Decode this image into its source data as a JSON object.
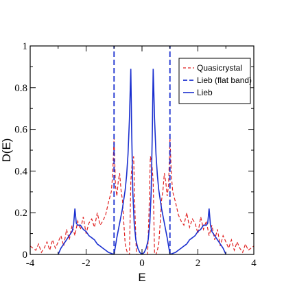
{
  "chart_data": {
    "type": "line",
    "xlabel": "E",
    "ylabel": "D(E)",
    "xlim": [
      -4,
      4
    ],
    "ylim": [
      0,
      1
    ],
    "x_ticks": [
      "-4",
      "-2",
      "0",
      "2",
      "4"
    ],
    "y_ticks": [
      "0",
      "0.2",
      "0.4",
      "0.6",
      "0.8",
      "1"
    ],
    "grid": false,
    "legend_position": "top-right",
    "colors": {
      "quasicrystal": "#e02020",
      "lieb": "#1a2fcf"
    },
    "series": [
      {
        "name": "Quasicrystal",
        "style": "dashed",
        "color": "#e02020",
        "x": [
          -4.0,
          -3.9,
          -3.8,
          -3.7,
          -3.6,
          -3.5,
          -3.4,
          -3.3,
          -3.2,
          -3.1,
          -3.0,
          -2.9,
          -2.8,
          -2.7,
          -2.6,
          -2.5,
          -2.4,
          -2.3,
          -2.2,
          -2.1,
          -2.0,
          -1.9,
          -1.8,
          -1.7,
          -1.6,
          -1.5,
          -1.4,
          -1.3,
          -1.2,
          -1.1,
          -1.05,
          -1.0,
          -0.95,
          -0.9,
          -0.85,
          -0.8,
          -0.75,
          -0.7,
          -0.65,
          -0.6,
          -0.55,
          -0.5,
          -0.45,
          -0.4,
          -0.35,
          -0.3,
          -0.25,
          -0.2,
          -0.15,
          -0.1,
          0.1,
          0.15,
          0.2,
          0.25,
          0.3,
          0.35,
          0.4,
          0.45,
          0.5,
          0.55,
          0.6,
          0.65,
          0.7,
          0.75,
          0.8,
          0.85,
          0.9,
          0.95,
          1.0,
          1.05,
          1.1,
          1.2,
          1.3,
          1.4,
          1.5,
          1.6,
          1.7,
          1.8,
          1.9,
          2.0,
          2.1,
          2.2,
          2.3,
          2.4,
          2.5,
          2.6,
          2.7,
          2.8,
          2.9,
          3.0,
          3.1,
          3.2,
          3.3,
          3.4,
          3.5,
          3.6,
          3.7,
          3.8,
          3.9,
          4.0
        ],
        "y": [
          0.04,
          0.03,
          0.02,
          0.05,
          0.01,
          0.03,
          0.06,
          0.02,
          0.07,
          0.03,
          0.06,
          0.09,
          0.04,
          0.12,
          0.07,
          0.14,
          0.09,
          0.16,
          0.12,
          0.18,
          0.1,
          0.15,
          0.17,
          0.13,
          0.2,
          0.14,
          0.16,
          0.19,
          0.25,
          0.3,
          0.38,
          0.56,
          0.33,
          0.28,
          0.35,
          0.39,
          0.31,
          0.26,
          0.15,
          0.05,
          0.02,
          0.0,
          0.0,
          0.35,
          0.44,
          0.47,
          0.2,
          0.0,
          0.0,
          0.0,
          0.0,
          0.0,
          0.0,
          0.2,
          0.47,
          0.44,
          0.35,
          0.0,
          0.0,
          0.02,
          0.05,
          0.15,
          0.26,
          0.31,
          0.39,
          0.35,
          0.28,
          0.33,
          0.56,
          0.38,
          0.3,
          0.25,
          0.19,
          0.16,
          0.14,
          0.2,
          0.13,
          0.17,
          0.15,
          0.1,
          0.18,
          0.12,
          0.16,
          0.09,
          0.14,
          0.07,
          0.12,
          0.04,
          0.09,
          0.06,
          0.03,
          0.07,
          0.02,
          0.06,
          0.03,
          0.01,
          0.05,
          0.02,
          0.03,
          0.04
        ]
      },
      {
        "name": "Lieb (flat band)",
        "style": "dashed",
        "color": "#1a2fcf",
        "x": [
          -1,
          1
        ],
        "y": [
          1,
          1
        ]
      },
      {
        "name": "Lieb",
        "style": "solid",
        "color": "#1a2fcf",
        "x": [
          -3.0,
          -2.9,
          -2.8,
          -2.7,
          -2.6,
          -2.5,
          -2.45,
          -2.4,
          -2.35,
          -2.3,
          -2.2,
          -2.1,
          -2.0,
          -1.9,
          -1.8,
          -1.7,
          -1.6,
          -1.5,
          -1.4,
          -1.3,
          -1.2,
          -1.1,
          -1.0,
          -0.9,
          -0.8,
          -0.7,
          -0.6,
          -0.55,
          -0.5,
          -0.45,
          -0.42,
          -0.4,
          -0.37,
          -0.33,
          -0.28,
          -0.22,
          -0.15,
          -0.08,
          0.0,
          0.08,
          0.15,
          0.22,
          0.28,
          0.33,
          0.37,
          0.4,
          0.42,
          0.45,
          0.5,
          0.55,
          0.6,
          0.7,
          0.8,
          0.9,
          1.0,
          1.1,
          1.2,
          1.3,
          1.4,
          1.5,
          1.6,
          1.7,
          1.8,
          1.9,
          2.0,
          2.1,
          2.2,
          2.3,
          2.35,
          2.4,
          2.45,
          2.5,
          2.6,
          2.7,
          2.8,
          2.9,
          3.0
        ],
        "y": [
          0.0,
          0.03,
          0.05,
          0.07,
          0.09,
          0.11,
          0.14,
          0.22,
          0.15,
          0.14,
          0.14,
          0.12,
          0.11,
          0.09,
          0.08,
          0.07,
          0.05,
          0.04,
          0.03,
          0.02,
          0.01,
          0.005,
          0.0,
          0.08,
          0.15,
          0.22,
          0.31,
          0.38,
          0.48,
          0.65,
          0.8,
          0.89,
          0.6,
          0.3,
          0.15,
          0.07,
          0.03,
          0.01,
          0.0,
          0.01,
          0.03,
          0.07,
          0.15,
          0.3,
          0.6,
          0.89,
          0.8,
          0.65,
          0.48,
          0.38,
          0.31,
          0.22,
          0.15,
          0.08,
          0.0,
          0.005,
          0.01,
          0.02,
          0.03,
          0.04,
          0.05,
          0.07,
          0.08,
          0.09,
          0.11,
          0.12,
          0.14,
          0.14,
          0.15,
          0.22,
          0.14,
          0.11,
          0.09,
          0.07,
          0.05,
          0.03,
          0.0
        ]
      }
    ]
  }
}
